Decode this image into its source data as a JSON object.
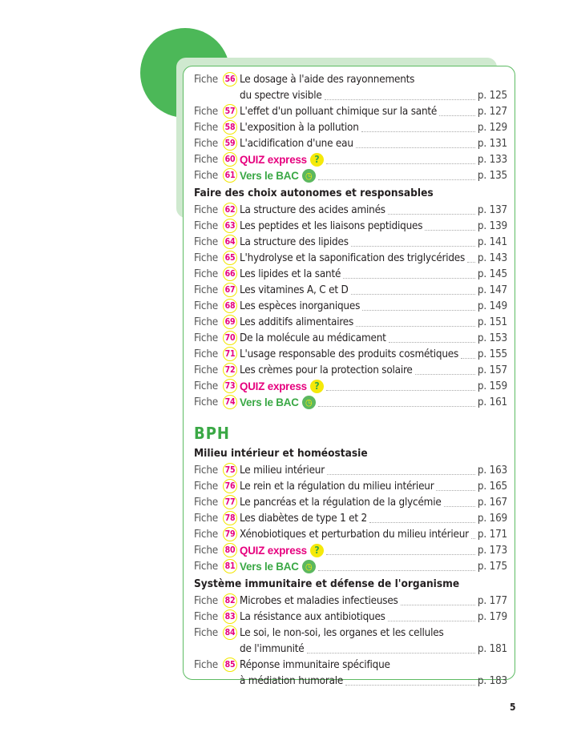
{
  "fiche_label": "Fiche",
  "colors": {
    "accent_green": "#3aa845",
    "accent_pink": "#e6007e",
    "number_ring": "#f2e600"
  },
  "blocks": [
    {
      "kind": "entry",
      "num": "56",
      "lines": [
        "Le dosage à l'aide des rayonnements",
        "du spectre visible"
      ],
      "page": "p. 125"
    },
    {
      "kind": "entry",
      "num": "57",
      "lines": [
        "L'effet d'un polluant chimique sur la santé"
      ],
      "page": "p. 127"
    },
    {
      "kind": "entry",
      "num": "58",
      "lines": [
        "L'exposition à la pollution"
      ],
      "page": "p. 129"
    },
    {
      "kind": "entry",
      "num": "59",
      "lines": [
        "L'acidification d'une eau"
      ],
      "page": "p. 131"
    },
    {
      "kind": "quiz",
      "num": "60",
      "lines": [
        "QUIZ express"
      ],
      "icon": "question-icon",
      "page": "p. 133"
    },
    {
      "kind": "bac",
      "num": "61",
      "lines": [
        "Vers le BAC"
      ],
      "icon": "clock-icon",
      "page": "p. 135"
    },
    {
      "kind": "section",
      "text": "Faire des choix autonomes et responsables"
    },
    {
      "kind": "entry",
      "num": "62",
      "lines": [
        "La structure des acides aminés"
      ],
      "page": "p. 137"
    },
    {
      "kind": "entry",
      "num": "63",
      "lines": [
        "Les peptides et les liaisons peptidiques"
      ],
      "page": "p. 139"
    },
    {
      "kind": "entry",
      "num": "64",
      "lines": [
        "La structure des lipides"
      ],
      "page": "p. 141"
    },
    {
      "kind": "entry",
      "num": "65",
      "lines": [
        "L'hydrolyse et la saponification des triglycérides"
      ],
      "page": "p. 143"
    },
    {
      "kind": "entry",
      "num": "66",
      "lines": [
        "Les lipides et la santé"
      ],
      "page": "p. 145"
    },
    {
      "kind": "entry",
      "num": "67",
      "lines": [
        "Les vitamines A, C et D"
      ],
      "page": "p. 147"
    },
    {
      "kind": "entry",
      "num": "68",
      "lines": [
        "Les espèces inorganiques"
      ],
      "page": "p. 149"
    },
    {
      "kind": "entry",
      "num": "69",
      "lines": [
        "Les additifs alimentaires"
      ],
      "page": "p. 151"
    },
    {
      "kind": "entry",
      "num": "70",
      "lines": [
        "De la molécule au médicament"
      ],
      "page": "p. 153"
    },
    {
      "kind": "entry",
      "num": "71",
      "lines": [
        "L'usage responsable des produits cosmétiques"
      ],
      "page": "p. 155"
    },
    {
      "kind": "entry",
      "num": "72",
      "lines": [
        "Les crèmes pour la protection solaire"
      ],
      "page": "p. 157"
    },
    {
      "kind": "quiz",
      "num": "73",
      "lines": [
        "QUIZ express"
      ],
      "icon": "question-icon",
      "page": "p. 159"
    },
    {
      "kind": "bac",
      "num": "74",
      "lines": [
        "Vers le BAC"
      ],
      "icon": "clock-icon",
      "page": "p. 161"
    },
    {
      "kind": "part",
      "text": "BPH"
    },
    {
      "kind": "section",
      "text": "Milieu intérieur et homéostasie"
    },
    {
      "kind": "entry",
      "num": "75",
      "lines": [
        "Le milieu intérieur"
      ],
      "page": "p. 163"
    },
    {
      "kind": "entry",
      "num": "76",
      "lines": [
        "Le rein et la régulation du milieu intérieur"
      ],
      "page": "p. 165"
    },
    {
      "kind": "entry",
      "num": "77",
      "lines": [
        "Le pancréas et la régulation de la glycémie"
      ],
      "page": "p. 167"
    },
    {
      "kind": "entry",
      "num": "78",
      "lines": [
        "Les diabètes de type 1 et 2"
      ],
      "page": "p. 169"
    },
    {
      "kind": "entry",
      "num": "79",
      "lines": [
        "Xénobiotiques et perturbation du milieu intérieur"
      ],
      "page": "p. 171"
    },
    {
      "kind": "quiz",
      "num": "80",
      "lines": [
        "QUIZ express"
      ],
      "icon": "question-icon",
      "page": "p. 173"
    },
    {
      "kind": "bac",
      "num": "81",
      "lines": [
        "Vers le BAC"
      ],
      "icon": "clock-icon",
      "page": "p. 175"
    },
    {
      "kind": "section",
      "text": "Système immunitaire et défense de l'organisme"
    },
    {
      "kind": "entry",
      "num": "82",
      "lines": [
        "Microbes et maladies infectieuses"
      ],
      "page": "p. 177"
    },
    {
      "kind": "entry",
      "num": "83",
      "lines": [
        "La résistance aux antibiotiques"
      ],
      "page": "p. 179"
    },
    {
      "kind": "entry",
      "num": "84",
      "lines": [
        "Le soi, le non-soi, les organes et les cellules",
        "de l'immunité"
      ],
      "page": "p. 181"
    },
    {
      "kind": "entry",
      "num": "85",
      "lines": [
        "Réponse immunitaire spécifique",
        "à médiation humorale"
      ],
      "page": "p. 183"
    }
  ],
  "page_number": "5"
}
